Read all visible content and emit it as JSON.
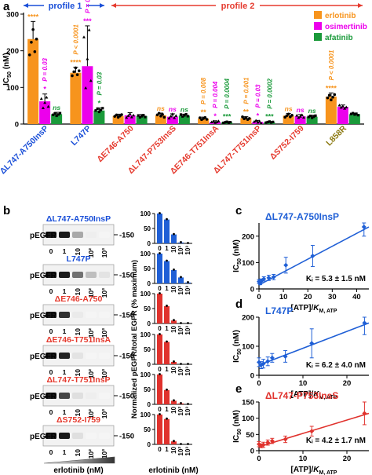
{
  "panel_labels": {
    "a": "a",
    "b": "b",
    "c": "c",
    "d": "d",
    "e": "e"
  },
  "colors": {
    "erlotinib": "#f7941d",
    "osimertinib": "#ec00ec",
    "afatinib": "#1a9a3a",
    "blue": "#1f5fd6",
    "red": "#e0322d",
    "mutant_blue": "#1a4fd8",
    "mutant_red": "#e53a2e",
    "mutant_olive": "#8c7a12"
  },
  "panel_a": {
    "profile1": "profile 1",
    "profile2": "profile 2",
    "ylabel_main": "IC",
    "ylabel_sub": "50",
    "ylabel_unit": "(nM)",
    "legend": [
      "erlotinib",
      "osimertinib",
      "afatinib"
    ],
    "sig_labels": {
      "g0": [
        "****",
        "*",
        "ns"
      ],
      "g1": [
        "****",
        "***",
        "*"
      ],
      "g2": [
        "",
        "",
        ""
      ],
      "g3": [
        "ns",
        "ns",
        "ns"
      ],
      "g4": [
        "**",
        "*",
        "***"
      ],
      "g5": [
        "**",
        "*",
        "***"
      ],
      "g6": [
        "ns",
        "ns",
        "ns"
      ],
      "g7": [
        "****",
        "",
        ""
      ]
    },
    "pvals": {
      "g0": [
        "",
        "P = 0.03",
        ""
      ],
      "g1": [
        "P < 0.0001",
        "P = 0.008",
        "P = 0.03"
      ],
      "g4": [
        "P = 0.008",
        "P = 0.004",
        "P = 0.0004"
      ],
      "g5": [
        "P = 0.001",
        "P = 0.03",
        "P = 0.0002"
      ],
      "g7": [
        "P < 0.0001",
        "",
        ""
      ]
    }
  },
  "chart_data": [
    {
      "type": "bar",
      "title": "",
      "ylabel": "IC50 (nM)",
      "ylim": [
        0,
        300
      ],
      "yticks": [
        0,
        100,
        200,
        300
      ],
      "categories": [
        "ΔL747-A750InsP",
        "L747P",
        "ΔE746-A750",
        "ΔL747-P753InsS",
        "ΔE746-T751InsA",
        "ΔL747-T751InsP",
        "ΔS752-I759",
        "L858R"
      ],
      "category_colors": [
        "mutant_blue",
        "mutant_blue",
        "mutant_red",
        "mutant_red",
        "mutant_red",
        "mutant_red",
        "mutant_red",
        "mutant_olive"
      ],
      "series": [
        {
          "name": "erlotinib",
          "values": [
            232,
            140,
            22,
            24,
            15,
            16,
            23,
            75
          ],
          "errors": [
            48,
            15,
            5,
            6,
            4,
            4,
            6,
            10
          ]
        },
        {
          "name": "osimertinib",
          "values": [
            62,
            158,
            24,
            20,
            6,
            6,
            21,
            47
          ],
          "errors": [
            20,
            110,
            7,
            8,
            3,
            4,
            5,
            5
          ]
        },
        {
          "name": "afatinib",
          "values": [
            27,
            37,
            22,
            23,
            5,
            5,
            20,
            27
          ],
          "errors": [
            5,
            7,
            4,
            4,
            2,
            2,
            4,
            3
          ]
        }
      ]
    },
    {
      "type": "bar",
      "ylabel": "Normalized pEGFR/total EGFR (% maximum)",
      "xlabel": "erlotinib (nM)",
      "categories": [
        "0",
        "1",
        "10",
        "10²",
        "10³"
      ],
      "ylim": [
        0,
        100
      ],
      "yticks": [
        0,
        50,
        100
      ],
      "rows": [
        {
          "name": "ΔL747-A750InsP",
          "color": "blue",
          "values": [
            100,
            80,
            30,
            3,
            0
          ]
        },
        {
          "name": "L747P",
          "color": "blue",
          "values": [
            100,
            75,
            45,
            20,
            3
          ]
        },
        {
          "name": "ΔE746-A750",
          "color": "red",
          "values": [
            100,
            58,
            10,
            0,
            0
          ]
        },
        {
          "name": "ΔE746-T751InsA",
          "color": "red",
          "values": [
            100,
            75,
            8,
            0,
            0
          ]
        },
        {
          "name": "ΔL747-T751InsP",
          "color": "red",
          "values": [
            100,
            48,
            12,
            3,
            0
          ]
        },
        {
          "name": "ΔS752-I759",
          "color": "red",
          "values": [
            100,
            85,
            10,
            0,
            0
          ]
        }
      ]
    },
    {
      "type": "line",
      "title": "ΔL747-A750InsP",
      "color": "blue",
      "xlabel": "[ATP]/K_M, ATP",
      "ylabel": "IC50 (nM)",
      "xlim": [
        0,
        45
      ],
      "xticks": [
        0,
        10,
        20,
        30,
        40
      ],
      "ylim": [
        0,
        250
      ],
      "yticks": [
        0,
        100,
        200
      ],
      "x": [
        0,
        0.5,
        1,
        2,
        4,
        6,
        11,
        22,
        43
      ],
      "y": [
        28,
        22,
        30,
        38,
        42,
        45,
        90,
        125,
        235
      ],
      "errors": [
        8,
        6,
        8,
        8,
        10,
        10,
        30,
        40,
        35
      ],
      "fit": [
        [
          0,
          15
        ],
        [
          45,
          235
        ]
      ],
      "annotation": "K_i = 5.3 ± 1.5 nM"
    },
    {
      "type": "line",
      "title": "L747P",
      "color": "blue",
      "xlabel": "[ATP]/K_M, ATP",
      "ylabel": "IC50 (nM)",
      "xlim": [
        0,
        25
      ],
      "xticks": [
        0,
        10,
        20
      ],
      "ylim": [
        0,
        200
      ],
      "yticks": [
        0,
        100,
        200
      ],
      "x": [
        0,
        0.5,
        1,
        2,
        3,
        6,
        12,
        24
      ],
      "y": [
        45,
        35,
        40,
        48,
        60,
        65,
        110,
        180
      ],
      "errors": [
        15,
        12,
        15,
        15,
        15,
        20,
        50,
        40
      ],
      "fit": [
        [
          0,
          35
        ],
        [
          25,
          180
        ]
      ],
      "annotation": "K_i = 6.2 ± 4.0 nM"
    },
    {
      "type": "line",
      "title": "ΔL747-P753InsS",
      "color": "red",
      "xlabel": "[ATP]/K_M, ATP",
      "ylabel": "IC50 (nM)",
      "xlim": [
        0,
        25
      ],
      "xticks": [
        0,
        10,
        20
      ],
      "ylim": [
        0,
        150
      ],
      "yticks": [
        0,
        50,
        100,
        150
      ],
      "x": [
        0,
        0.5,
        1,
        2,
        3,
        6,
        12,
        24
      ],
      "y": [
        20,
        15,
        18,
        25,
        30,
        35,
        60,
        115
      ],
      "errors": [
        8,
        6,
        8,
        8,
        8,
        10,
        15,
        35
      ],
      "fit": [
        [
          0,
          12
        ],
        [
          25,
          115
        ]
      ],
      "annotation": "K_i = 4.2 ± 1.7 nM"
    }
  ],
  "blots": {
    "row_label": "pEGFR",
    "marker": "150",
    "titles": [
      "ΔL747-A750InsP",
      "L747P",
      "ΔE746-A750",
      "ΔE746-T751InsA",
      "ΔL747-T751InsP",
      "ΔS752-I759"
    ],
    "xticks": [
      "0",
      "1",
      "10",
      "10²",
      "10³"
    ],
    "xlabel": "erlotinib (nM)",
    "intensities": [
      [
        1,
        1,
        0.35,
        0.03,
        0
      ],
      [
        1,
        1,
        0.6,
        0.25,
        0.08
      ],
      [
        1,
        0.9,
        0.05,
        0,
        0
      ],
      [
        1,
        0.95,
        0.08,
        0,
        0
      ],
      [
        1,
        0.8,
        0.1,
        0.03,
        0
      ],
      [
        1,
        1,
        0.1,
        0,
        0
      ]
    ]
  }
}
